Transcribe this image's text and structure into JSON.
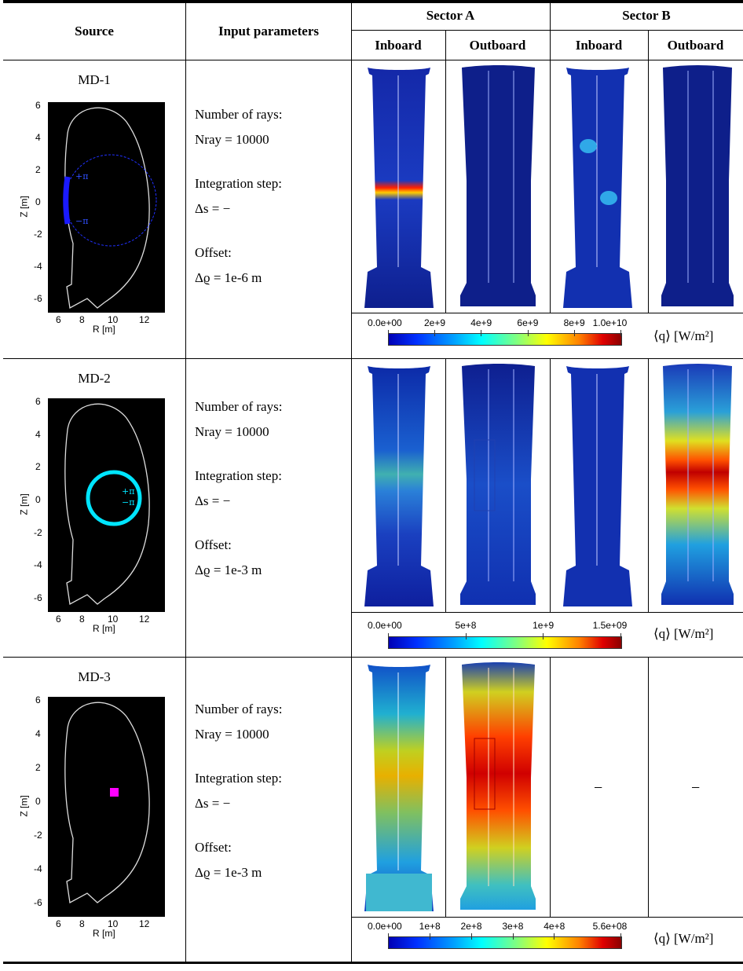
{
  "header": {
    "source": "Source",
    "input_parameters": "Input parameters",
    "sector_a": "Sector A",
    "sector_b": "Sector B",
    "inboard": "Inboard",
    "outboard": "Outboard"
  },
  "plot_axes": {
    "xlabel": "R [m]",
    "ylabel": "Z [m]",
    "xticks": [
      "6",
      "8",
      "10",
      "12"
    ],
    "yticks": [
      "6",
      "4",
      "2",
      "0",
      "-2",
      "-4",
      "-6"
    ]
  },
  "param_labels": {
    "rays": "Number of rays:",
    "step": "Integration step:",
    "offset": "Offset:"
  },
  "units": "⟨q⟩  [W/m²]",
  "rows": [
    {
      "source": "MD-1",
      "n_ray": "Nray = 10000",
      "ds": "Δs = −",
      "offset": "Δϱ = 1e-6 m",
      "markers": [
        "+π",
        "−π"
      ],
      "colorbar_ticks": [
        "0.0e+00",
        "2e+9",
        "4e+9",
        "6e+9",
        "8e+9",
        "1.0e+10"
      ],
      "colorbar_values": [
        0,
        2000000000.0,
        4000000000.0,
        6000000000.0,
        8000000000.0,
        10000000000.0
      ]
    },
    {
      "source": "MD-2",
      "n_ray": "Nray = 10000",
      "ds": "Δs = −",
      "offset": "Δϱ = 1e-3 m",
      "markers": [
        "+π",
        "−π"
      ],
      "colorbar_ticks": [
        "0.0e+00",
        "5e+8",
        "1e+9",
        "1.5e+09"
      ],
      "colorbar_values": [
        0,
        500000000.0,
        1000000000.0,
        1500000000.0
      ]
    },
    {
      "source": "MD-3",
      "n_ray": "Nray = 10000",
      "ds": "Δs = −",
      "offset": "Δϱ = 1e-3 m",
      "sector_b_inboard": "−",
      "sector_b_outboard": "−",
      "colorbar_ticks": [
        "0.0e+00",
        "1e+8",
        "2e+8",
        "3e+8",
        "4e+8",
        "5.6e+08"
      ],
      "colorbar_values": [
        0,
        100000000.0,
        200000000.0,
        300000000.0,
        400000000.0,
        560000000.0
      ]
    }
  ],
  "colors": {
    "md1_source": "#1a1aff",
    "md2_source": "#00e5ff",
    "md3_source": "#ff00ff"
  }
}
